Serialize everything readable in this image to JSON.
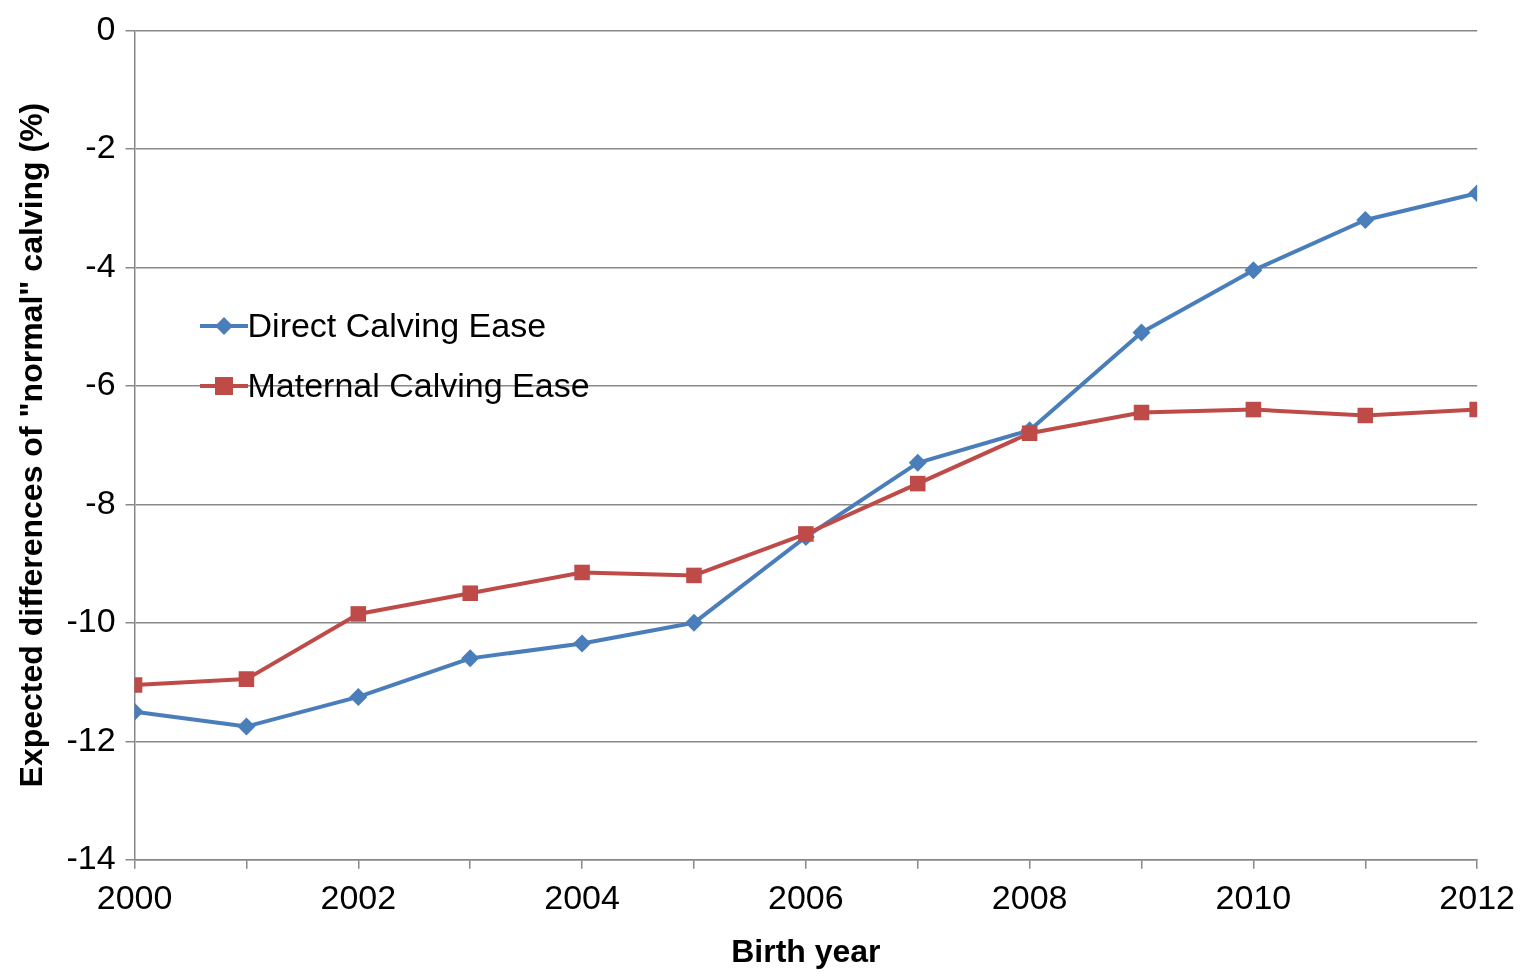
{
  "chart_data": {
    "type": "line",
    "xlabel": "Birth year",
    "ylabel": "Expected differences of \"normal\" calving (%)",
    "x": [
      2000,
      2001,
      2002,
      2003,
      2004,
      2005,
      2006,
      2007,
      2008,
      2009,
      2010,
      2011,
      2012
    ],
    "series": [
      {
        "name": "Direct Calving Ease",
        "color": "#4a7ebb",
        "marker": "diamond",
        "values": [
          -11.5,
          -11.75,
          -11.25,
          -10.6,
          -10.35,
          -10.0,
          -8.55,
          -7.3,
          -6.75,
          -5.1,
          -4.05,
          -3.2,
          -2.75
        ]
      },
      {
        "name": "Maternal Calving Ease",
        "color": "#be4b48",
        "marker": "square",
        "values": [
          -11.05,
          -10.95,
          -9.85,
          -9.5,
          -9.15,
          -9.2,
          -8.5,
          -7.65,
          -6.8,
          -6.45,
          -6.4,
          -6.5,
          -6.4
        ]
      }
    ],
    "xlim": [
      2000,
      2012
    ],
    "xticks": [
      2000,
      {
        "value": 2001,
        "label": null
      },
      2002,
      {
        "value": 2003,
        "label": null
      },
      2004,
      {
        "value": 2005,
        "label": null
      },
      2006,
      {
        "value": 2007,
        "label": null
      },
      2008,
      {
        "value": 2009,
        "label": null
      },
      2010,
      {
        "value": 2011,
        "label": null
      },
      2012
    ],
    "ylim": [
      -14,
      0
    ],
    "yticks": [
      -14,
      -12,
      -10,
      -8,
      -6,
      -4,
      -2,
      0
    ],
    "grid": "y",
    "legend": "left",
    "line_style": "solid"
  }
}
